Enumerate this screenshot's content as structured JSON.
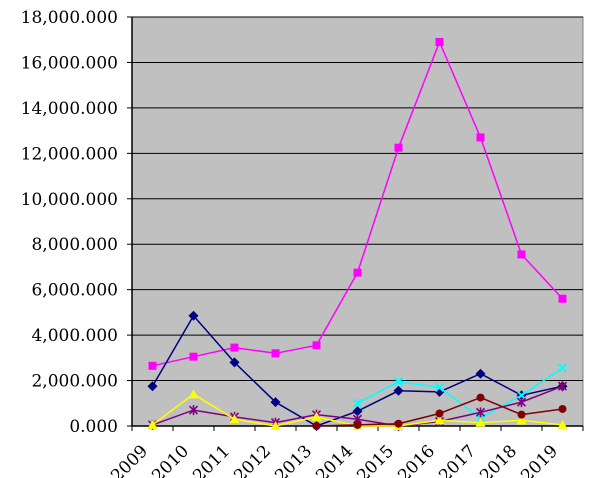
{
  "chart_data": {
    "type": "line",
    "title": "",
    "xlabel": "",
    "ylabel": "",
    "categories": [
      "2009",
      "2010",
      "2011",
      "2012",
      "2013",
      "2014",
      "2015",
      "2016",
      "2017",
      "2018",
      "2019"
    ],
    "ylim": [
      0,
      18000
    ],
    "y_tick_values": [
      0,
      2000,
      4000,
      6000,
      8000,
      10000,
      12000,
      14000,
      16000,
      18000
    ],
    "y_tick_labels": [
      "0.000",
      "2,000.000",
      "4,000.000",
      "6,000.000",
      "8,000.000",
      "10,000.000",
      "12,000.000",
      "14,000.000",
      "16,000.000",
      "18,000.000"
    ],
    "grid": "horizontal",
    "legend": "none",
    "plot_background": "#c0c0c0",
    "series": [
      {
        "color": "#ff00ff",
        "marker": "square",
        "values": [
          2650,
          3050,
          3450,
          3200,
          3550,
          6750,
          12250,
          16900,
          12700,
          7550,
          5600
        ]
      },
      {
        "color": "#000080",
        "marker": "diamond",
        "values": [
          1750,
          4850,
          2800,
          1050,
          0,
          650,
          1550,
          1500,
          2300,
          1350,
          1750
        ]
      },
      {
        "color": "#00ffff",
        "marker": "x",
        "values": [
          null,
          null,
          null,
          null,
          null,
          1000,
          1950,
          1700,
          350,
          1350,
          2550
        ]
      },
      {
        "color": "#800080",
        "marker": "asterisk",
        "values": [
          50,
          700,
          400,
          150,
          500,
          300,
          0,
          200,
          600,
          1050,
          1750
        ]
      },
      {
        "color": "#ffff00",
        "marker": "triangle",
        "values": [
          50,
          1400,
          300,
          0,
          400,
          0,
          0,
          250,
          150,
          250,
          50
        ]
      },
      {
        "color": "#800000",
        "marker": "circle",
        "values": [
          null,
          null,
          null,
          null,
          0,
          50,
          100,
          550,
          1250,
          500,
          750
        ]
      }
    ]
  }
}
